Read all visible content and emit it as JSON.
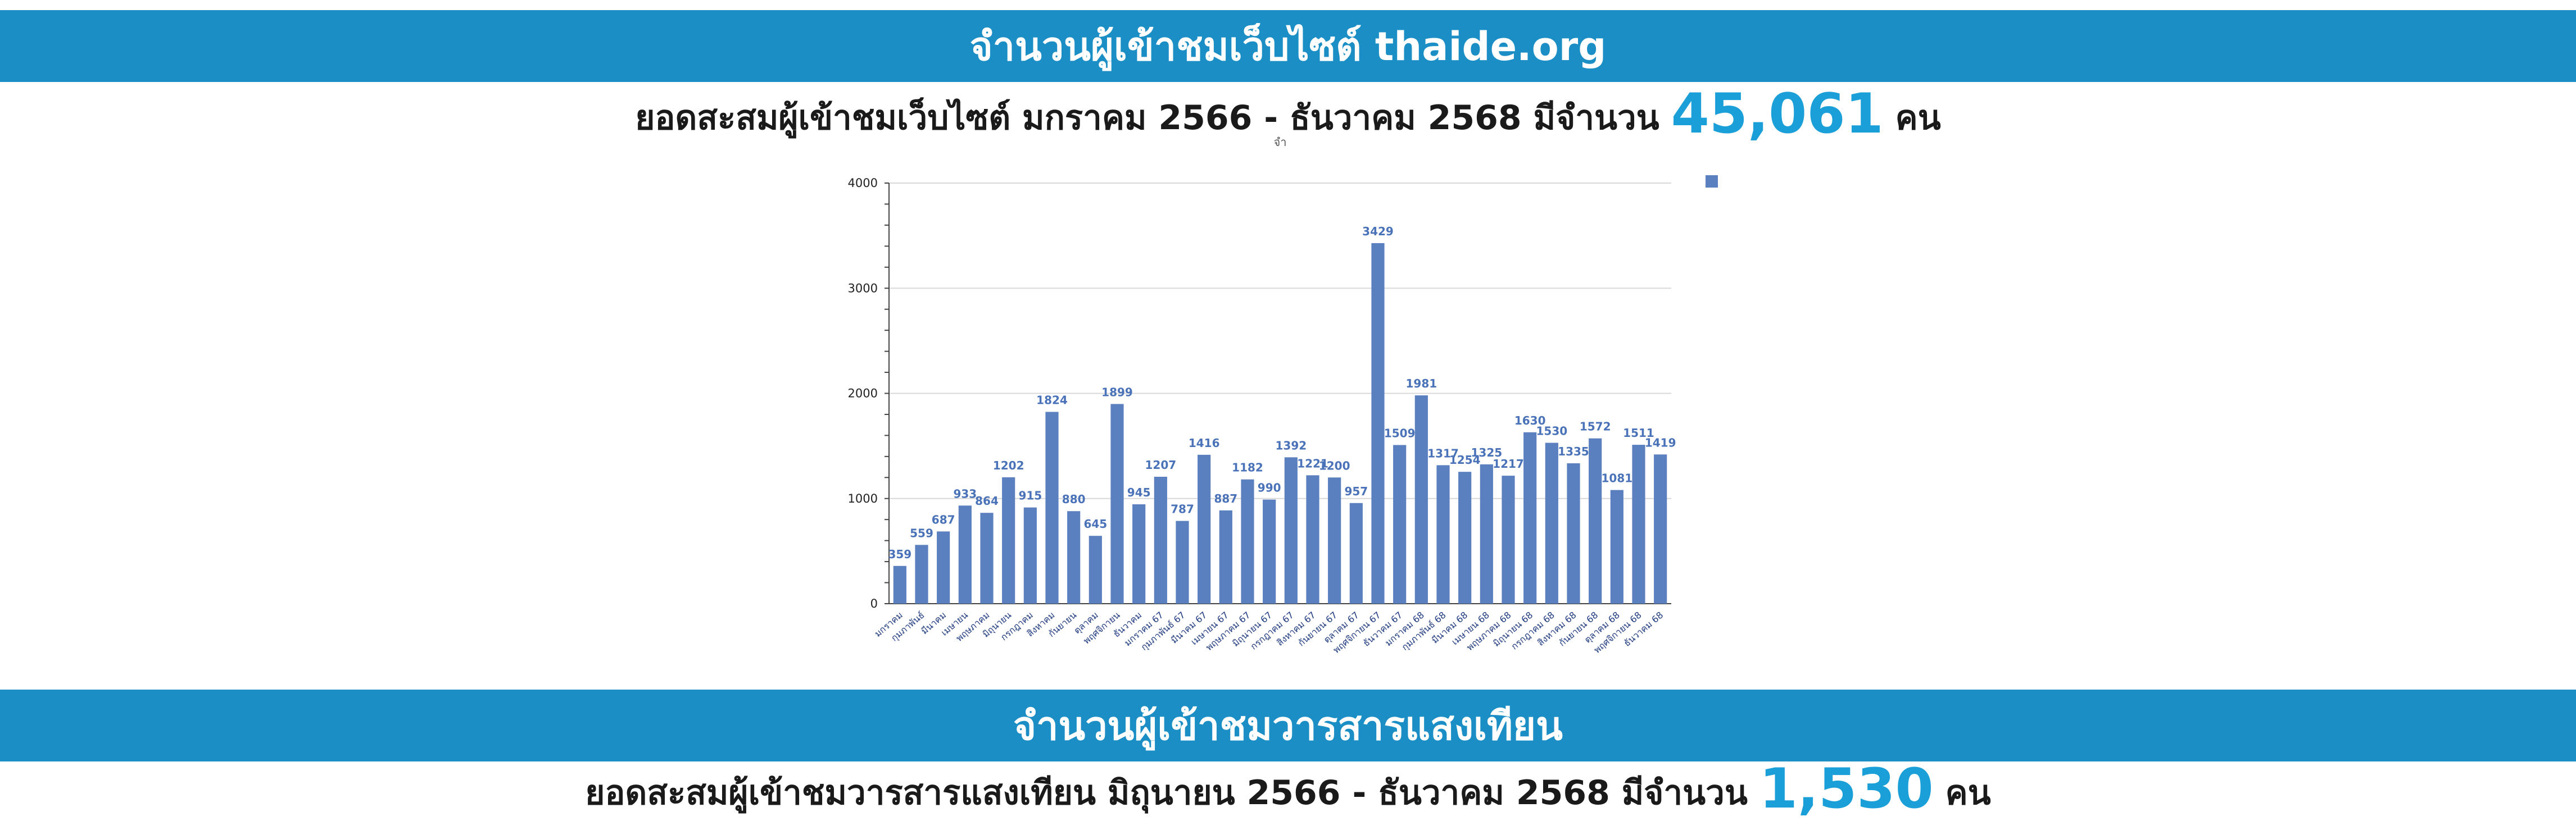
{
  "colors": {
    "banner": "#1b8fc5",
    "accent": "#1a9fd9",
    "bar": "#5b80c0",
    "label": "#4a72b8",
    "grid": "#d9d9d9"
  },
  "banner1": {
    "title": "จำนวนผู้เข้าชมเว็บไซต์ thaide.org"
  },
  "subtitle1": {
    "prefix": "ยอดสะสมผู้เข้าชมเว็บไซต์ มกราคม 2566 - ธันวาคม 2568 มีจำนวน",
    "value": "45,061",
    "suffix": "คน"
  },
  "banner2": {
    "title": "จำนวนผู้เข้าชมวารสารแสงเทียน"
  },
  "subtitle2": {
    "prefix": "ยอดสะสมผู้เข้าชมวารสารแสงเทียน มิถุนายน 2566 - ธันวาคม 2568 มีจำนวน",
    "value": "1,530",
    "suffix": "คน"
  },
  "chart_data": {
    "type": "bar",
    "title": "จำ",
    "ylim": [
      0,
      4000
    ],
    "yticks": [
      0,
      1000,
      2000,
      3000,
      4000
    ],
    "grid": true,
    "legend": "top-right",
    "data_labels": true,
    "categories": [
      "มกราคม",
      "กุมภาพันธ์",
      "มีนาคม",
      "เมษายน",
      "พฤษภาคม",
      "มิถุนายน",
      "กรกฎาคม",
      "สิงหาคม",
      "กันยายน",
      "ตุลาคม",
      "พฤศจิกายน",
      "ธันวาคม",
      "มกราคม 67",
      "กุมภาพันธ์ 67",
      "มีนาคม 67",
      "เมษายน 67",
      "พฤษภาคม 67",
      "มิถุนายน 67",
      "กรกฎาคม 67",
      "สิงหาคม 67",
      "กันยายน 67",
      "ตุลาคม 67",
      "พฤศจิกายน 67",
      "ธันวาคม 67",
      "มกราคม 68",
      "กุมภาพันธ์ 68",
      "มีนาคม 68",
      "เมษายน 68",
      "พฤษภาคม 68",
      "มิถุนายน 68",
      "กรกฎาคม 68",
      "สิงหาคม 68",
      "กันยายน 68",
      "ตุลาคม 68",
      "พฤศจิกายน 68",
      "ธันวาคม 68"
    ],
    "values": [
      359,
      559,
      687,
      933,
      864,
      1202,
      915,
      1824,
      880,
      645,
      1899,
      945,
      1207,
      787,
      1416,
      887,
      1182,
      990,
      1392,
      1221,
      1200,
      957,
      3429,
      1509,
      1981,
      1317,
      1254,
      1325,
      1217,
      1630,
      1530,
      1335,
      1572,
      1081,
      1511,
      1419
    ]
  }
}
